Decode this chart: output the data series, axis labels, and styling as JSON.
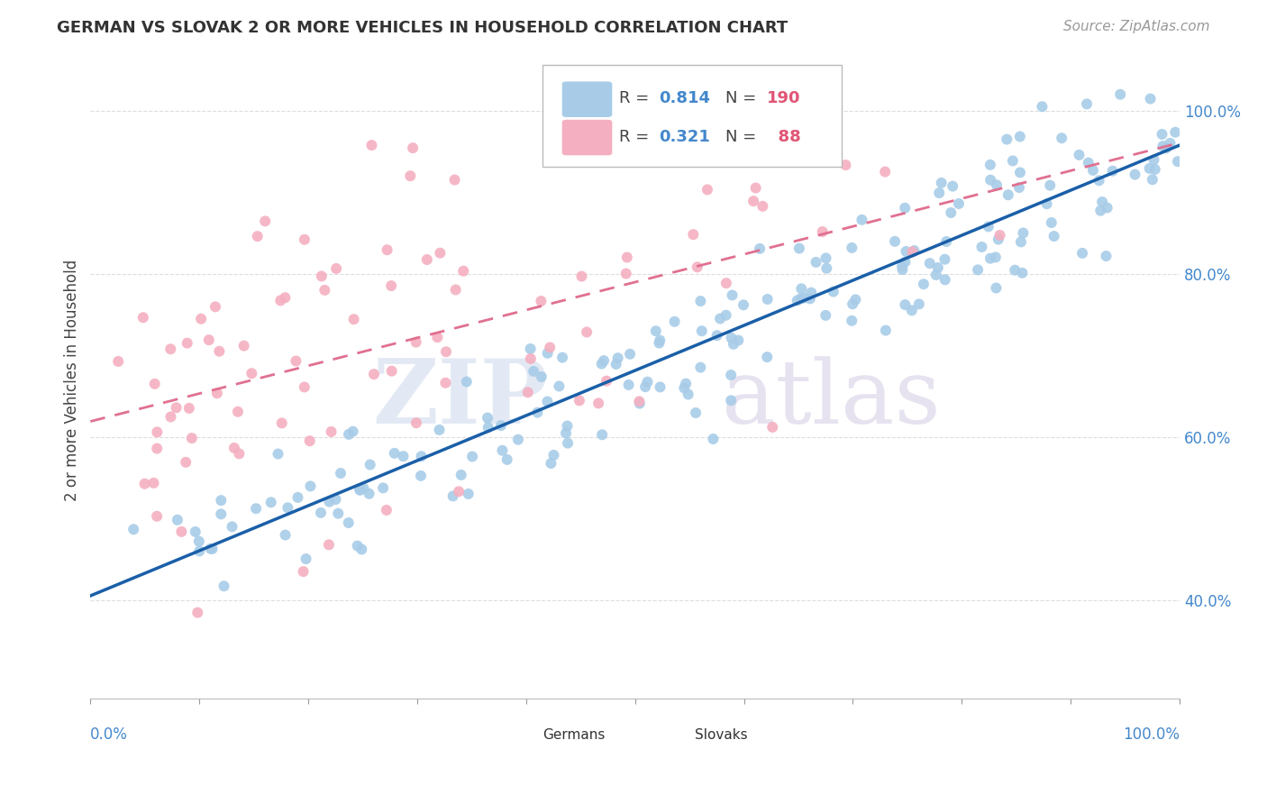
{
  "title": "GERMAN VS SLOVAK 2 OR MORE VEHICLES IN HOUSEHOLD CORRELATION CHART",
  "source": "Source: ZipAtlas.com",
  "ylabel": "2 or more Vehicles in Household",
  "xlim": [
    0.0,
    1.0
  ],
  "ylim": [
    0.28,
    1.06
  ],
  "yticks": [
    0.4,
    0.6,
    0.8,
    1.0
  ],
  "ytick_labels": [
    "40.0%",
    "60.0%",
    "80.0%",
    "100.0%"
  ],
  "german_color": "#a8cce8",
  "slovak_color": "#f4afc0",
  "german_line_color": "#1a5fa8",
  "slovak_line_color": "#e07090",
  "german_R": 0.814,
  "german_N": 190,
  "slovak_R": 0.321,
  "slovak_N": 88,
  "title_fontsize": 13,
  "source_fontsize": 11,
  "ylabel_fontsize": 12,
  "tick_fontsize": 12,
  "legend_fontsize": 13
}
